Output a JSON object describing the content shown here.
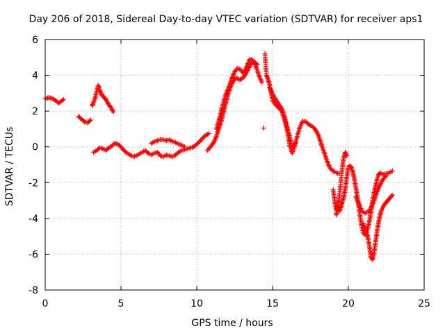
{
  "chart_data": {
    "type": "scatter",
    "title": "Day 206 of 2018, Sidereal Day-to-day VTEC variation (SDTVAR) for receiver aps1",
    "xlabel": "GPS time / hours",
    "ylabel": "SDTVAR / TECUs",
    "xlim": [
      0,
      25
    ],
    "ylim": [
      -8,
      6
    ],
    "xticks": [
      "0",
      "5",
      "10",
      "15",
      "20",
      "25"
    ],
    "yticks": [
      "-8",
      "-6",
      "-4",
      "-2",
      "0",
      "2",
      "4",
      "6"
    ],
    "grid": true,
    "marker": "plus",
    "color": "#ff0000",
    "series": [
      {
        "x": [
          0.0,
          0.25,
          0.5,
          0.75,
          0.9,
          1.05,
          1.2
        ],
        "y": [
          2.7,
          2.75,
          2.7,
          2.55,
          2.45,
          2.55,
          2.65
        ]
      },
      {
        "x": [
          2.2,
          2.4,
          2.6,
          2.8,
          3.0
        ],
        "y": [
          1.7,
          1.55,
          1.4,
          1.35,
          1.5
        ]
      },
      {
        "x": [
          3.1,
          3.2,
          3.3,
          3.4,
          3.5,
          3.6,
          3.7,
          3.8,
          3.9,
          4.0,
          4.1,
          4.2,
          4.3,
          4.4,
          4.5
        ],
        "y": [
          2.3,
          2.5,
          2.75,
          3.1,
          3.45,
          3.15,
          2.95,
          2.85,
          2.75,
          2.65,
          2.5,
          2.35,
          2.25,
          2.1,
          1.95
        ]
      },
      {
        "x": [
          3.2,
          3.4,
          3.6,
          3.8,
          4.0,
          4.2,
          4.4,
          4.6,
          4.8,
          5.0,
          5.2,
          5.4,
          5.6,
          5.8,
          6.0,
          6.2,
          6.4,
          6.6,
          6.8,
          7.0,
          7.2,
          7.4,
          7.6,
          7.8,
          8.0,
          8.2,
          8.4,
          8.6,
          8.8,
          9.0,
          9.2,
          9.4,
          9.6,
          9.8,
          10.0,
          10.2,
          10.4,
          10.6,
          10.8
        ],
        "y": [
          -0.3,
          -0.2,
          -0.05,
          -0.1,
          -0.2,
          -0.05,
          0.05,
          0.2,
          0.15,
          0.0,
          -0.2,
          -0.35,
          -0.45,
          -0.55,
          -0.5,
          -0.4,
          -0.3,
          -0.2,
          -0.35,
          -0.45,
          -0.35,
          -0.3,
          -0.5,
          -0.55,
          -0.45,
          -0.5,
          -0.55,
          -0.45,
          -0.3,
          -0.2,
          -0.15,
          -0.1,
          -0.05,
          0.0,
          0.15,
          0.3,
          0.5,
          0.65,
          0.75
        ]
      },
      {
        "x": [
          7.0,
          7.2,
          7.4,
          7.6,
          7.8,
          8.0,
          8.2,
          8.4,
          8.6,
          8.8,
          9.0,
          9.2
        ],
        "y": [
          0.2,
          0.3,
          0.35,
          0.4,
          0.4,
          0.35,
          0.4,
          0.3,
          0.25,
          0.15,
          0.1,
          0.0
        ]
      },
      {
        "x": [
          10.7,
          10.85,
          11.0,
          11.15,
          11.3,
          11.45,
          11.6,
          11.75,
          11.9,
          12.05,
          12.2,
          12.35,
          12.5,
          12.65,
          12.8,
          12.95,
          13.1,
          13.25,
          13.4,
          13.55,
          13.7,
          13.85,
          14.0
        ],
        "y": [
          -0.2,
          -0.05,
          0.1,
          0.3,
          0.6,
          1.0,
          1.4,
          1.9,
          2.4,
          2.9,
          3.3,
          3.6,
          3.8,
          3.85,
          3.75,
          3.8,
          3.9,
          4.1,
          4.35,
          4.6,
          4.75,
          4.7,
          4.6
        ]
      },
      {
        "x": [
          11.3,
          11.5,
          11.7,
          11.9,
          12.1,
          12.3,
          12.5,
          12.7,
          12.9,
          13.1,
          13.3,
          13.5,
          13.7,
          13.9,
          14.1,
          14.3
        ],
        "y": [
          1.0,
          1.6,
          2.3,
          2.9,
          3.3,
          3.8,
          4.2,
          4.4,
          4.3,
          4.1,
          4.5,
          4.9,
          4.85,
          4.5,
          4.0,
          3.6
        ]
      },
      {
        "x": [
          14.5,
          14.55,
          14.6,
          14.7,
          14.8,
          14.9,
          15.0,
          15.2,
          15.4,
          15.6,
          15.8,
          16.0,
          16.15,
          16.3,
          16.45,
          16.6,
          16.8,
          17.0,
          17.2,
          17.4,
          17.6,
          17.8,
          18.0,
          18.2,
          18.4,
          18.6,
          18.8,
          19.0,
          19.2,
          19.4
        ],
        "y": [
          5.2,
          4.6,
          4.0,
          3.8,
          3.5,
          3.1,
          2.6,
          2.35,
          2.2,
          2.0,
          1.5,
          0.8,
          0.0,
          -0.35,
          0.0,
          0.5,
          1.1,
          1.45,
          1.4,
          1.25,
          1.15,
          1.0,
          0.7,
          0.2,
          -0.3,
          -0.8,
          -1.2,
          -1.35,
          -1.45,
          -1.5
        ]
      },
      {
        "x": [
          14.8,
          15.1,
          15.4,
          15.7,
          16.0,
          16.3,
          16.5
        ],
        "y": [
          3.3,
          2.8,
          2.4,
          2.0,
          1.0,
          0.0,
          0.2
        ]
      },
      {
        "x": [
          14.4
        ],
        "y": [
          1.05
        ]
      },
      {
        "x": [
          19.0,
          19.1,
          19.2,
          19.3,
          19.4,
          19.5,
          19.6,
          19.7,
          19.8,
          19.9,
          20.0,
          20.1,
          20.2,
          20.3,
          20.4,
          20.5,
          20.6,
          20.7,
          20.8,
          20.9,
          21.0,
          21.1,
          21.2,
          21.3,
          21.4,
          21.5,
          21.6,
          21.7,
          21.8,
          21.9,
          22.0,
          22.1,
          22.2,
          22.3,
          22.4,
          22.5,
          22.6,
          22.7,
          22.8,
          22.9
        ],
        "y": [
          -2.4,
          -3.0,
          -3.5,
          -3.3,
          -3.6,
          -3.4,
          -3.1,
          -2.8,
          -2.3,
          -1.7,
          -1.1,
          -1.05,
          -1.15,
          -1.4,
          -1.8,
          -2.3,
          -2.8,
          -3.4,
          -4.0,
          -4.5,
          -4.85,
          -4.9,
          -4.75,
          -4.5,
          -4.1,
          -3.6,
          -3.0,
          -2.55,
          -2.15,
          -1.8,
          -1.55,
          -1.45,
          -1.5,
          -1.55,
          -1.5,
          -1.5,
          -1.5,
          -1.45,
          -1.4,
          -1.35
        ]
      },
      {
        "x": [
          19.2,
          19.3,
          19.4,
          19.5,
          19.6,
          19.7,
          19.8,
          19.9
        ],
        "y": [
          -3.8,
          -3.4,
          -2.8,
          -2.0,
          -1.2,
          -0.6,
          -0.3,
          -0.5
        ]
      },
      {
        "x": [
          21.0,
          21.1,
          21.2,
          21.3,
          21.4,
          21.5,
          21.6,
          21.7,
          21.8,
          21.9,
          22.0,
          22.1,
          22.2,
          22.3,
          22.4,
          22.5,
          22.6,
          22.7,
          22.8,
          22.9
        ],
        "y": [
          -4.3,
          -4.6,
          -4.8,
          -5.1,
          -5.6,
          -6.2,
          -6.3,
          -5.9,
          -5.3,
          -4.7,
          -4.2,
          -3.8,
          -3.5,
          -3.35,
          -3.2,
          -3.1,
          -3.0,
          -2.9,
          -2.8,
          -2.7
        ]
      },
      {
        "x": [
          20.5,
          20.7,
          20.9,
          21.1,
          21.3,
          21.5,
          21.7,
          21.9,
          22.1,
          22.3,
          22.5
        ],
        "y": [
          -2.8,
          -3.2,
          -3.6,
          -3.7,
          -3.65,
          -3.4,
          -3.0,
          -2.5,
          -2.1,
          -1.8,
          -1.6
        ]
      }
    ]
  }
}
